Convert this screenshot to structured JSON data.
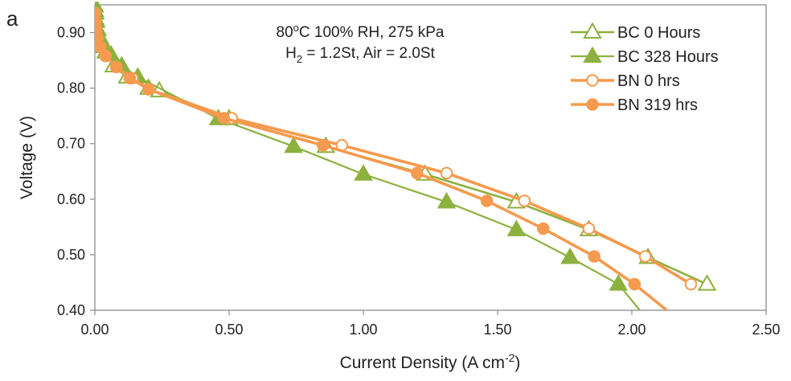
{
  "panel_label": "a",
  "conditions": {
    "line1": "80°C 100% RH, 275 kPa",
    "line2": "H2 = 1.2St, Air = 2.0St"
  },
  "chart_data": {
    "type": "line",
    "xlabel": "Current Density (A cm-2)",
    "ylabel": "Voltage (V)",
    "xlim": [
      0,
      2.5
    ],
    "ylim": [
      0.4,
      0.95
    ],
    "xticks": [
      "0.00",
      "0.50",
      "1.00",
      "1.50",
      "2.00",
      "2.50"
    ],
    "yticks": [
      "0.40",
      "0.50",
      "0.60",
      "0.70",
      "0.80",
      "0.90"
    ],
    "xtick_values": [
      0,
      0.5,
      1.0,
      1.5,
      2.0,
      2.5
    ],
    "ytick_values": [
      0.4,
      0.5,
      0.6,
      0.7,
      0.8,
      0.9
    ],
    "grid": false,
    "legend_position": "top-right",
    "series": [
      {
        "name": "BC 0 Hours",
        "color": "#8db13f",
        "marker": "triangle-open",
        "x": [
          0.0,
          0.002,
          0.005,
          0.01,
          0.02,
          0.04,
          0.07,
          0.12,
          0.2,
          0.24,
          0.5,
          0.86,
          1.23,
          1.57,
          1.84,
          2.06,
          2.28
        ],
        "y": [
          0.94,
          0.925,
          0.91,
          0.895,
          0.88,
          0.865,
          0.84,
          0.82,
          0.8,
          0.795,
          0.745,
          0.695,
          0.645,
          0.595,
          0.545,
          0.495,
          0.447
        ]
      },
      {
        "name": "BC 328 Hours",
        "color": "#8db13f",
        "marker": "triangle-filled",
        "x": [
          0.0,
          0.002,
          0.005,
          0.01,
          0.02,
          0.035,
          0.06,
          0.1,
          0.16,
          0.46,
          0.74,
          1.0,
          1.31,
          1.57,
          1.77,
          1.95,
          2.03
        ],
        "y": [
          0.948,
          0.935,
          0.92,
          0.905,
          0.89,
          0.875,
          0.86,
          0.84,
          0.82,
          0.745,
          0.695,
          0.645,
          0.595,
          0.545,
          0.495,
          0.447,
          0.4
        ]
      },
      {
        "name": "BN 0 hrs",
        "color": "#f59a4e",
        "marker": "circle-open",
        "x": [
          0.0,
          0.002,
          0.005,
          0.01,
          0.02,
          0.04,
          0.08,
          0.14,
          0.2,
          0.51,
          0.92,
          1.31,
          1.6,
          1.84,
          2.05,
          2.22
        ],
        "y": [
          0.935,
          0.92,
          0.905,
          0.89,
          0.875,
          0.858,
          0.838,
          0.818,
          0.798,
          0.746,
          0.697,
          0.647,
          0.597,
          0.547,
          0.497,
          0.447
        ]
      },
      {
        "name": "BN 319 hrs",
        "color": "#f59a4e",
        "marker": "circle-filled",
        "x": [
          0.0,
          0.002,
          0.005,
          0.01,
          0.02,
          0.04,
          0.08,
          0.13,
          0.2,
          0.48,
          0.85,
          1.2,
          1.46,
          1.67,
          1.86,
          2.01,
          2.13
        ],
        "y": [
          0.935,
          0.92,
          0.905,
          0.89,
          0.875,
          0.858,
          0.838,
          0.818,
          0.798,
          0.746,
          0.697,
          0.647,
          0.597,
          0.547,
          0.497,
          0.447,
          0.4
        ]
      }
    ]
  }
}
